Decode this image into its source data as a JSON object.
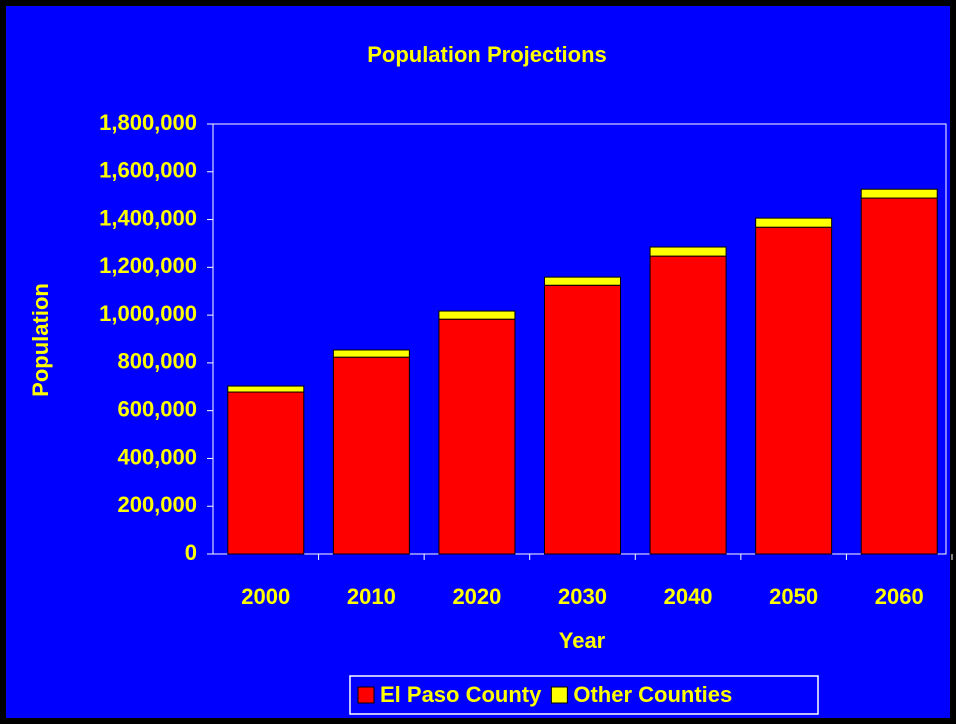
{
  "chart_data": {
    "type": "stacked_bar",
    "title": "Population Projections",
    "x_label": "Year",
    "y_label": "Population",
    "categories": [
      "2000",
      "2010",
      "2020",
      "2030",
      "2040",
      "2050",
      "2060"
    ],
    "series": [
      {
        "name": "El Paso County",
        "color": "#ff0000",
        "values": [
          678000,
          824000,
          983000,
          1125000,
          1247000,
          1368000,
          1490000
        ]
      },
      {
        "name": "Other Counties",
        "color": "#ffff00",
        "values": [
          25000,
          30000,
          34000,
          34000,
          38000,
          38000,
          37000
        ]
      }
    ],
    "ylim": [
      0,
      1800000
    ],
    "yticks": [
      0,
      {
        "value": 200000,
        "label": "200,000"
      },
      {
        "value": 400000,
        "label": "400,000"
      },
      {
        "value": 600000,
        "label": "600,000"
      },
      {
        "value": 800000,
        "label": "800,000"
      },
      {
        "value": 1000000,
        "label": "1,000,000"
      },
      {
        "value": 1200000,
        "label": "1,200,000"
      },
      {
        "value": 1400000,
        "label": "1,400,000"
      },
      {
        "value": 1600000,
        "label": "1,600,000"
      },
      {
        "value": 1800000,
        "label": "1,800,000"
      }
    ],
    "legend": "bottom"
  }
}
